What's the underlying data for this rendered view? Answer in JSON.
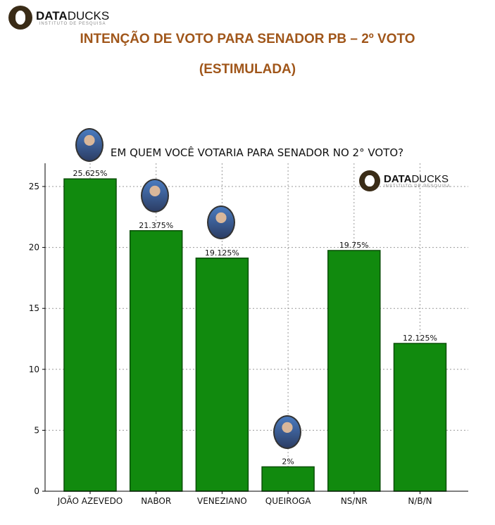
{
  "header": {
    "logo_bold": "DATA",
    "logo_regular": "DUCKS",
    "logo_subtitle": "INSTITUTO DE PESQUISA",
    "title_line1": "INTENÇÃO DE VOTO PARA SENADOR PB – 2º VOTO",
    "title_line2": "(ESTIMULADA)"
  },
  "colors": {
    "bar": "#118a0e",
    "bar_edge": "#0a4f08",
    "title": "#a0561a"
  },
  "chart_data": {
    "type": "bar",
    "title": "EM QUEM VOCÊ VOTARIA PARA SENADOR NO 2° VOTO?",
    "categories": [
      "JOÃO AZEVEDO",
      "NABOR",
      "VENEZIANO",
      "QUEIROGA",
      "NS/NR",
      "N/B/N"
    ],
    "values": [
      25.625,
      21.375,
      19.125,
      2,
      19.75,
      12.125
    ],
    "labels": [
      "25.625%",
      "21.375%",
      "19.125%",
      "2%",
      "19.75%",
      "12.125%"
    ],
    "yticks": [
      0,
      5,
      10,
      15,
      20,
      25
    ],
    "ylim": [
      0,
      27
    ],
    "xlabel": "",
    "ylabel": "",
    "grid": true
  }
}
